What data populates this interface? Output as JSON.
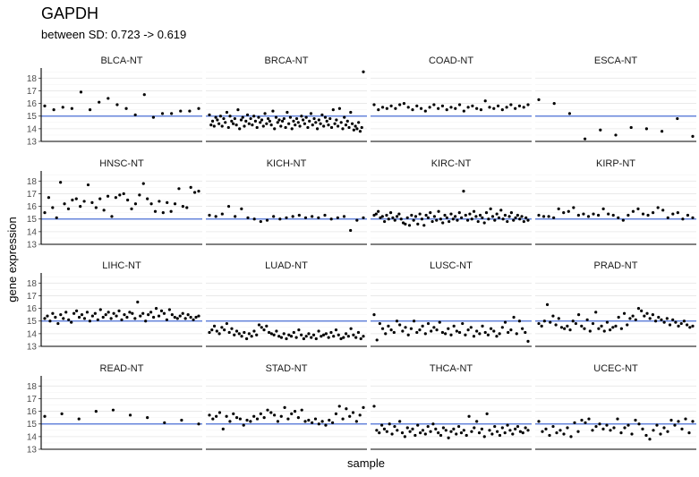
{
  "title": "GAPDH",
  "subtitle": "between SD: 0.723 -> 0.619",
  "chart_data": {
    "type": "scatter",
    "xlabel": "sample",
    "ylabel": "gene expression",
    "ylim": [
      13,
      18.8
    ],
    "yticks": [
      13,
      14,
      15,
      16,
      17,
      18
    ],
    "grid": true,
    "facet_layout": "4x4",
    "reference_line_color": "#4a6fd6",
    "point_color": "#000000",
    "panels": [
      {
        "name": "BLCA-NT",
        "ref": 15.0,
        "values": [
          15.8,
          15.5,
          15.7,
          15.6,
          16.9,
          15.5,
          16.1,
          16.4,
          15.9,
          15.6,
          15.1,
          16.7,
          14.9,
          15.2,
          15.2,
          15.4,
          15.4,
          15.6
        ]
      },
      {
        "name": "BRCA-NT",
        "ref": 15.0,
        "values": [
          15.1,
          14.3,
          14.6,
          14.2,
          14.9,
          14.7,
          14.4,
          15.0,
          14.2,
          14.8,
          14.5,
          15.3,
          14.1,
          15.0,
          14.6,
          14.4,
          14.8,
          14.3,
          15.5,
          14.0,
          14.7,
          14.9,
          14.2,
          14.6,
          15.1,
          14.4,
          14.8,
          14.3,
          15.0,
          14.6,
          14.1,
          14.9,
          14.5,
          14.7,
          14.2,
          15.2,
          14.4,
          14.8,
          14.6,
          14.3,
          15.4,
          14.0,
          14.9,
          14.5,
          14.7,
          14.2,
          14.6,
          14.8,
          14.1,
          15.3,
          14.4,
          14.9,
          14.0,
          14.6,
          14.3,
          14.8,
          14.5,
          14.2,
          15.0,
          14.7,
          14.4,
          14.9,
          14.1,
          14.6,
          15.2,
          14.3,
          14.8,
          14.5,
          14.0,
          14.7,
          14.4,
          15.1,
          14.2,
          14.9,
          14.6,
          14.3,
          14.8,
          14.1,
          15.5,
          14.4,
          14.7,
          14.2,
          15.6,
          14.5,
          14.0,
          14.9,
          14.3,
          14.6,
          14.1,
          15.3,
          14.4,
          13.9,
          14.2,
          14.0,
          14.5,
          13.8,
          14.1,
          18.5
        ]
      },
      {
        "name": "COAD-NT",
        "ref": 15.0,
        "values": [
          15.9,
          15.5,
          15.7,
          15.6,
          15.8,
          15.6,
          15.9,
          16.0,
          15.7,
          15.5,
          15.8,
          15.6,
          15.4,
          15.7,
          15.9,
          15.6,
          15.8,
          15.5,
          15.7,
          15.6,
          15.9,
          15.4,
          15.7,
          15.8,
          15.6,
          15.5,
          16.2,
          15.7,
          15.6,
          15.8,
          15.5,
          15.7,
          15.9,
          15.6,
          15.8,
          15.7,
          15.9
        ]
      },
      {
        "name": "ESCA-NT",
        "ref": 15.0,
        "values": [
          16.3,
          16.0,
          15.2,
          13.2,
          13.9,
          13.5,
          14.1,
          14.0,
          13.8,
          14.8,
          13.4
        ]
      },
      {
        "name": "HNSC-NT",
        "ref": 15.0,
        "values": [
          15.5,
          16.7,
          15.9,
          15.1,
          17.9,
          16.2,
          15.8,
          16.5,
          16.6,
          16.0,
          16.4,
          17.7,
          16.3,
          15.9,
          16.6,
          15.7,
          16.8,
          15.2,
          16.7,
          16.9,
          17.0,
          16.5,
          15.8,
          16.2,
          16.9,
          17.8,
          16.6,
          16.2,
          15.6,
          16.4,
          15.5,
          16.3,
          15.6,
          16.2,
          17.4,
          16.0,
          15.9,
          17.5,
          17.1,
          17.2
        ]
      },
      {
        "name": "KICH-NT",
        "ref": 15.0,
        "values": [
          15.3,
          15.2,
          15.4,
          16.0,
          15.2,
          15.8,
          15.1,
          15.0,
          14.8,
          14.9,
          15.2,
          15.0,
          15.1,
          15.2,
          15.3,
          15.1,
          15.2,
          15.1,
          15.3,
          15.0,
          15.1,
          15.2,
          14.1,
          14.9,
          15.1
        ]
      },
      {
        "name": "KIRC-NT",
        "ref": 15.0,
        "values": [
          15.3,
          15.4,
          15.6,
          15.1,
          15.2,
          14.8,
          15.3,
          15.0,
          15.5,
          15.1,
          14.9,
          15.2,
          15.4,
          15.0,
          14.7,
          14.6,
          15.1,
          14.5,
          15.3,
          14.9,
          15.2,
          14.6,
          15.4,
          15.0,
          14.5,
          15.3,
          15.1,
          15.5,
          14.8,
          15.2,
          14.9,
          15.6,
          15.0,
          14.7,
          15.3,
          15.1,
          14.8,
          15.4,
          15.0,
          15.2,
          14.9,
          15.5,
          15.1,
          17.2,
          15.3,
          14.9,
          15.4,
          15.0,
          15.6,
          15.2,
          14.8,
          15.3,
          15.1,
          14.7,
          15.5,
          15.0,
          15.8,
          15.2,
          14.9,
          15.4,
          15.1,
          15.7,
          15.0,
          15.3,
          14.8,
          15.2,
          15.5,
          14.9,
          15.1,
          15.3,
          15.0,
          15.2,
          14.8,
          15.1,
          14.9
        ]
      },
      {
        "name": "KIRP-NT",
        "ref": 15.0,
        "values": [
          15.3,
          15.2,
          15.2,
          15.1,
          15.8,
          15.5,
          15.6,
          15.9,
          15.3,
          15.4,
          15.2,
          15.4,
          15.3,
          15.8,
          15.4,
          15.3,
          15.1,
          14.9,
          15.3,
          15.6,
          15.8,
          15.4,
          15.3,
          15.5,
          15.9,
          15.7,
          15.1,
          15.4,
          15.5,
          15.0,
          15.3,
          15.1
        ]
      },
      {
        "name": "LIHC-NT",
        "ref": 15.0,
        "values": [
          15.2,
          15.4,
          15.0,
          15.6,
          15.3,
          14.8,
          15.5,
          15.2,
          15.7,
          15.1,
          14.9,
          15.6,
          15.8,
          15.3,
          15.5,
          15.2,
          15.7,
          15.0,
          15.4,
          15.6,
          15.1,
          15.9,
          15.3,
          15.5,
          15.7,
          15.2,
          15.6,
          15.4,
          15.8,
          15.1,
          15.5,
          15.3,
          15.7,
          15.6,
          15.2,
          16.5,
          15.4,
          15.6,
          15.0,
          15.5,
          15.7,
          15.3,
          16.0,
          15.4,
          15.8,
          15.6,
          15.1,
          15.9,
          15.5,
          15.3,
          15.2,
          15.4,
          15.6,
          15.2,
          15.5,
          15.3,
          15.1,
          15.3,
          15.4
        ]
      },
      {
        "name": "LUAD-NT",
        "ref": 15.0,
        "values": [
          14.1,
          14.3,
          14.6,
          14.2,
          14.0,
          14.5,
          14.3,
          14.8,
          14.1,
          14.4,
          13.9,
          14.2,
          14.0,
          13.8,
          14.1,
          13.6,
          14.0,
          13.8,
          14.2,
          13.9,
          14.7,
          14.5,
          14.3,
          14.6,
          14.1,
          14.0,
          13.9,
          14.2,
          13.8,
          13.7,
          14.0,
          13.6,
          13.9,
          13.8,
          14.1,
          13.7,
          14.3,
          13.9,
          13.6,
          13.8,
          14.0,
          13.7,
          13.9,
          13.6,
          14.2,
          13.8,
          13.9,
          14.0,
          13.7,
          14.1,
          13.8,
          14.3,
          13.9,
          13.6,
          13.7,
          14.0,
          13.8,
          14.4,
          13.9,
          13.7,
          14.1,
          13.6,
          13.8
        ]
      },
      {
        "name": "LUSC-NT",
        "ref": 15.0,
        "values": [
          15.5,
          13.5,
          14.8,
          14.4,
          14.0,
          14.6,
          14.3,
          14.1,
          15.0,
          14.7,
          14.2,
          14.5,
          13.9,
          14.4,
          15.0,
          14.1,
          14.3,
          14.6,
          14.0,
          14.8,
          14.2,
          14.5,
          14.3,
          14.9,
          14.1,
          14.0,
          14.4,
          13.9,
          14.6,
          14.2,
          14.1,
          14.8,
          13.9,
          14.3,
          14.5,
          13.8,
          14.2,
          14.0,
          14.6,
          14.1,
          13.9,
          14.4,
          14.2,
          13.8,
          14.0,
          14.5,
          14.9,
          14.1,
          14.3,
          15.3,
          14.0,
          15.0,
          14.4,
          14.1,
          13.4
        ]
      },
      {
        "name": "PRAD-NT",
        "ref": 15.0,
        "values": [
          14.8,
          14.6,
          15.0,
          16.3,
          14.9,
          15.4,
          14.7,
          15.2,
          14.5,
          14.4,
          14.6,
          14.3,
          15.0,
          14.8,
          15.5,
          14.6,
          14.4,
          15.1,
          14.2,
          14.8,
          15.7,
          14.4,
          14.6,
          14.2,
          14.9,
          14.3,
          14.5,
          14.6,
          15.3,
          14.4,
          15.6,
          14.7,
          15.2,
          15.4,
          15.1,
          16.0,
          15.8,
          15.4,
          15.6,
          15.2,
          15.5,
          15.0,
          15.3,
          15.1,
          14.9,
          15.2,
          14.7,
          15.1,
          14.9,
          14.6,
          14.8,
          15.0,
          14.7,
          14.5,
          14.6
        ]
      },
      {
        "name": "READ-NT",
        "ref": 15.0,
        "values": [
          15.6,
          15.8,
          15.4,
          16.0,
          16.1,
          15.7,
          15.5,
          15.1,
          15.3,
          15.0
        ]
      },
      {
        "name": "STAD-NT",
        "ref": 15.0,
        "values": [
          15.7,
          15.4,
          15.6,
          15.9,
          14.6,
          15.6,
          15.2,
          15.8,
          15.5,
          15.4,
          14.9,
          15.3,
          15.2,
          15.6,
          15.4,
          15.8,
          15.5,
          16.1,
          15.9,
          15.7,
          15.2,
          15.6,
          16.3,
          15.4,
          15.8,
          16.0,
          15.5,
          16.1,
          15.2,
          15.3,
          15.1,
          15.4,
          15.0,
          15.2,
          14.9,
          15.3,
          15.1,
          15.8,
          16.4,
          15.4,
          16.2,
          15.6,
          15.9,
          15.2,
          15.7,
          16.3
        ]
      },
      {
        "name": "THCA-NT",
        "ref": 15.0,
        "values": [
          16.4,
          14.5,
          14.3,
          14.9,
          14.6,
          14.4,
          15.0,
          14.2,
          14.8,
          14.5,
          15.2,
          14.3,
          14.0,
          14.7,
          14.4,
          14.6,
          14.1,
          14.9,
          14.3,
          14.5,
          14.2,
          14.8,
          14.4,
          15.0,
          14.6,
          14.3,
          14.1,
          14.7,
          14.5,
          13.9,
          14.4,
          14.6,
          14.2,
          14.8,
          14.3,
          14.5,
          14.1,
          15.6,
          14.4,
          14.7,
          15.2,
          14.3,
          14.6,
          14.0,
          15.8,
          14.5,
          14.2,
          14.8,
          14.4,
          14.1,
          14.7,
          14.3,
          14.9,
          14.5,
          14.2,
          14.6,
          14.8,
          14.4,
          14.3,
          14.7,
          14.5
        ]
      },
      {
        "name": "UCEC-NT",
        "ref": 15.0,
        "values": [
          15.2,
          14.4,
          14.6,
          14.1,
          14.8,
          14.3,
          14.5,
          14.2,
          14.7,
          14.0,
          15.1,
          14.4,
          15.3,
          15.1,
          15.4,
          14.5,
          14.8,
          15.0,
          14.6,
          14.9,
          14.5,
          14.7,
          15.4,
          14.3,
          14.7,
          14.9,
          14.2,
          15.3,
          15.0,
          14.6,
          14.1,
          13.8,
          14.5,
          14.9,
          14.2,
          14.7,
          14.4,
          15.3,
          14.9,
          15.2,
          14.6,
          15.4,
          14.3,
          15.2
        ]
      }
    ]
  }
}
